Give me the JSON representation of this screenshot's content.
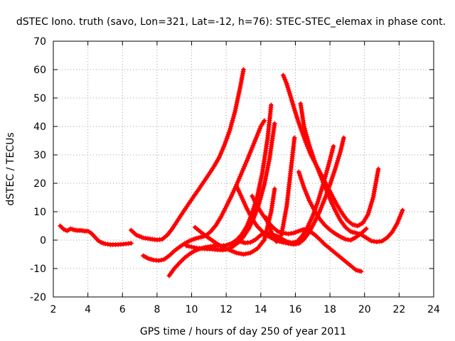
{
  "chart_data": {
    "type": "scatter",
    "title": "dSTEC Iono. truth (savo, Lon=321, Lat=-12, h=76): STEC-STEC_elemax in phase cont.",
    "xlabel": "GPS time / hours of day 250 of year 2011",
    "ylabel": "dSTEC  / TECUs",
    "xlim": [
      2,
      24
    ],
    "ylim": [
      -20,
      70
    ],
    "xticks": [
      2,
      4,
      6,
      8,
      10,
      12,
      14,
      16,
      18,
      20,
      22,
      24
    ],
    "yticks": [
      -20,
      -10,
      0,
      10,
      20,
      30,
      40,
      50,
      60,
      70
    ],
    "grid": true,
    "marker": "plus",
    "color": "#ff0000",
    "series": [
      {
        "x": [
          2.4,
          2.6,
          2.8,
          3.0,
          3.2,
          3.4,
          3.6,
          3.8,
          4.0,
          4.2,
          4.4,
          4.6,
          4.8,
          5.0,
          5.3,
          5.6,
          5.9,
          6.2,
          6.5
        ],
        "values": [
          5,
          3.8,
          3.3,
          4,
          3.6,
          3.4,
          3.4,
          3.2,
          3.2,
          2.4,
          1.1,
          -0.2,
          -0.9,
          -1.3,
          -1.6,
          -1.6,
          -1.5,
          -1.3,
          -1.1
        ]
      },
      {
        "x": [
          6.5,
          6.8,
          7.2,
          7.6,
          8.0,
          8.3,
          8.6,
          8.9,
          9.2,
          9.5,
          9.8,
          10.1,
          10.4,
          10.7,
          11.0,
          11.3,
          11.6,
          11.9,
          12.2,
          12.5,
          12.8,
          13.0
        ],
        "values": [
          3.5,
          1.8,
          0.8,
          0.4,
          0.1,
          0.3,
          1.8,
          4.2,
          7,
          9.8,
          12.5,
          15.2,
          17.8,
          20.5,
          23.2,
          26,
          29.2,
          33.5,
          38.5,
          45,
          53.5,
          60
        ]
      },
      {
        "x": [
          7.2,
          7.5,
          7.8,
          8.1,
          8.4,
          8.7,
          9.0,
          9.3,
          9.6,
          9.9,
          10.2,
          10.5,
          10.8,
          11.1,
          11.4,
          11.7,
          12.0,
          12.3,
          12.6,
          12.9,
          13.2,
          13.5,
          13.8,
          14.0,
          14.2
        ],
        "values": [
          -5.5,
          -6.5,
          -7,
          -7.2,
          -6.8,
          -5.5,
          -3.8,
          -2.4,
          -1.2,
          -0.2,
          0.5,
          1,
          1.5,
          3,
          5.2,
          8.2,
          11.8,
          15.5,
          19.5,
          23.8,
          28,
          32.5,
          37,
          40,
          42
        ]
      },
      {
        "x": [
          8.7,
          9.0,
          9.3,
          9.6,
          9.9,
          10.2,
          10.5,
          10.8,
          11.1,
          11.4,
          11.7,
          12.0,
          12.3,
          12.6,
          12.9,
          13.2,
          13.5,
          13.8,
          14.1,
          14.4,
          14.6
        ],
        "values": [
          -12.5,
          -10,
          -8,
          -6.2,
          -4.8,
          -3.7,
          -3,
          -2.5,
          -2.2,
          -2,
          -2,
          -1.8,
          -1.2,
          0,
          2,
          5,
          9.5,
          15.5,
          24,
          36,
          47.5
        ]
      },
      {
        "x": [
          9.7,
          10.0,
          10.3,
          10.6,
          10.9,
          11.2,
          11.5,
          11.8,
          12.1,
          12.4,
          12.7,
          13.0,
          13.3,
          13.6,
          13.9,
          14.2,
          14.5,
          14.8
        ],
        "values": [
          -2,
          -2.4,
          -2.8,
          -3,
          -3.1,
          -3.2,
          -3.4,
          -3.5,
          -3.2,
          -2.2,
          -0.8,
          1.2,
          4,
          7.8,
          12.8,
          19.5,
          28.5,
          41
        ]
      },
      {
        "x": [
          10.2,
          10.6,
          11.0,
          11.4,
          11.8,
          12.2,
          12.6,
          13.0,
          13.4,
          13.8,
          14.2,
          14.6,
          14.8
        ],
        "values": [
          4.5,
          2.5,
          0.7,
          -1,
          -2.5,
          -3.5,
          -4.5,
          -5,
          -4.5,
          -3,
          0,
          10,
          18
        ]
      },
      {
        "x": [
          12.6,
          12.9,
          13.2,
          13.5,
          13.8,
          14.1,
          14.4,
          14.7,
          15.0,
          15.3,
          15.6,
          15.9,
          16.2,
          16.5,
          16.8,
          17.1,
          17.4,
          17.7,
          18.0,
          18.3,
          18.6,
          18.8
        ],
        "values": [
          19,
          15,
          11,
          7.5,
          4.8,
          3,
          1.5,
          0.5,
          -0.3,
          -0.8,
          -1.2,
          -1.5,
          -1.2,
          0.3,
          2.8,
          6.2,
          10,
          14.5,
          19.5,
          25,
          31,
          36
        ]
      },
      {
        "x": [
          12.8,
          13.1,
          13.4,
          13.7,
          14.0,
          14.3,
          14.6,
          14.9,
          15.2,
          15.5,
          15.8,
          16.1,
          16.4,
          16.7,
          17.0,
          17.3,
          17.6,
          17.9,
          18.2
        ],
        "values": [
          -0.5,
          -1,
          -0.8,
          0.2,
          1.8,
          2.5,
          2.2,
          1.5,
          0.5,
          -0.5,
          -1,
          -0.5,
          1.5,
          4.5,
          8.5,
          13.5,
          19.5,
          26,
          33
        ]
      },
      {
        "x": [
          14.3,
          14.6,
          14.9,
          15.2,
          15.5,
          15.8,
          15.95
        ],
        "values": [
          8,
          3,
          -0.5,
          2,
          12,
          28,
          36
        ]
      },
      {
        "x": [
          13.5,
          13.8,
          14.1,
          14.4,
          14.7,
          15.0,
          15.3,
          15.6,
          15.9,
          16.2,
          16.5,
          16.8,
          17.1,
          17.4,
          17.7,
          18.0,
          18.3,
          18.6,
          18.9,
          19.2,
          19.5,
          19.8
        ],
        "values": [
          15.5,
          12,
          9,
          6.5,
          4.5,
          3,
          2.5,
          2.2,
          2.5,
          3.2,
          3.8,
          3.2,
          2,
          0.3,
          -1.5,
          -3,
          -4.5,
          -6,
          -7.5,
          -9,
          -10.5,
          -11
        ]
      },
      {
        "x": [
          15.3,
          15.5,
          15.7,
          15.9,
          16.1,
          16.3,
          16.6,
          16.9,
          17.2,
          17.5,
          17.8,
          18.1,
          18.4,
          18.7,
          19.0,
          19.3,
          19.6,
          19.9,
          20.2,
          20.5,
          20.8
        ],
        "values": [
          58,
          55,
          51,
          47,
          43,
          39.5,
          34.5,
          30,
          26.5,
          23,
          19.5,
          16,
          12.5,
          9.5,
          7,
          5.5,
          5,
          6,
          9,
          15,
          25
        ]
      },
      {
        "x": [
          16.3,
          16.5,
          16.8,
          17.1,
          17.4,
          17.7,
          18.0,
          18.3,
          18.6,
          18.9,
          19.2,
          19.5,
          19.8,
          20.1,
          20.4,
          20.7,
          21.0,
          21.3,
          21.6,
          21.9,
          22.2
        ],
        "values": [
          48,
          40,
          33.5,
          28,
          23.5,
          19,
          14.5,
          10.5,
          7,
          4.5,
          3,
          2.5,
          2,
          0.8,
          -0.3,
          -0.6,
          -0.4,
          0.8,
          2.8,
          6,
          10.5
        ]
      },
      {
        "x": [
          16.2,
          16.5,
          16.8,
          17.1,
          17.4,
          17.7,
          18.0,
          18.3,
          18.6,
          18.9,
          19.2,
          19.5,
          19.8,
          20.1
        ],
        "values": [
          24,
          18.5,
          14,
          10.5,
          7.5,
          5.3,
          3.6,
          2.3,
          1.2,
          0.3,
          0,
          1,
          2.3,
          4
        ]
      }
    ]
  }
}
